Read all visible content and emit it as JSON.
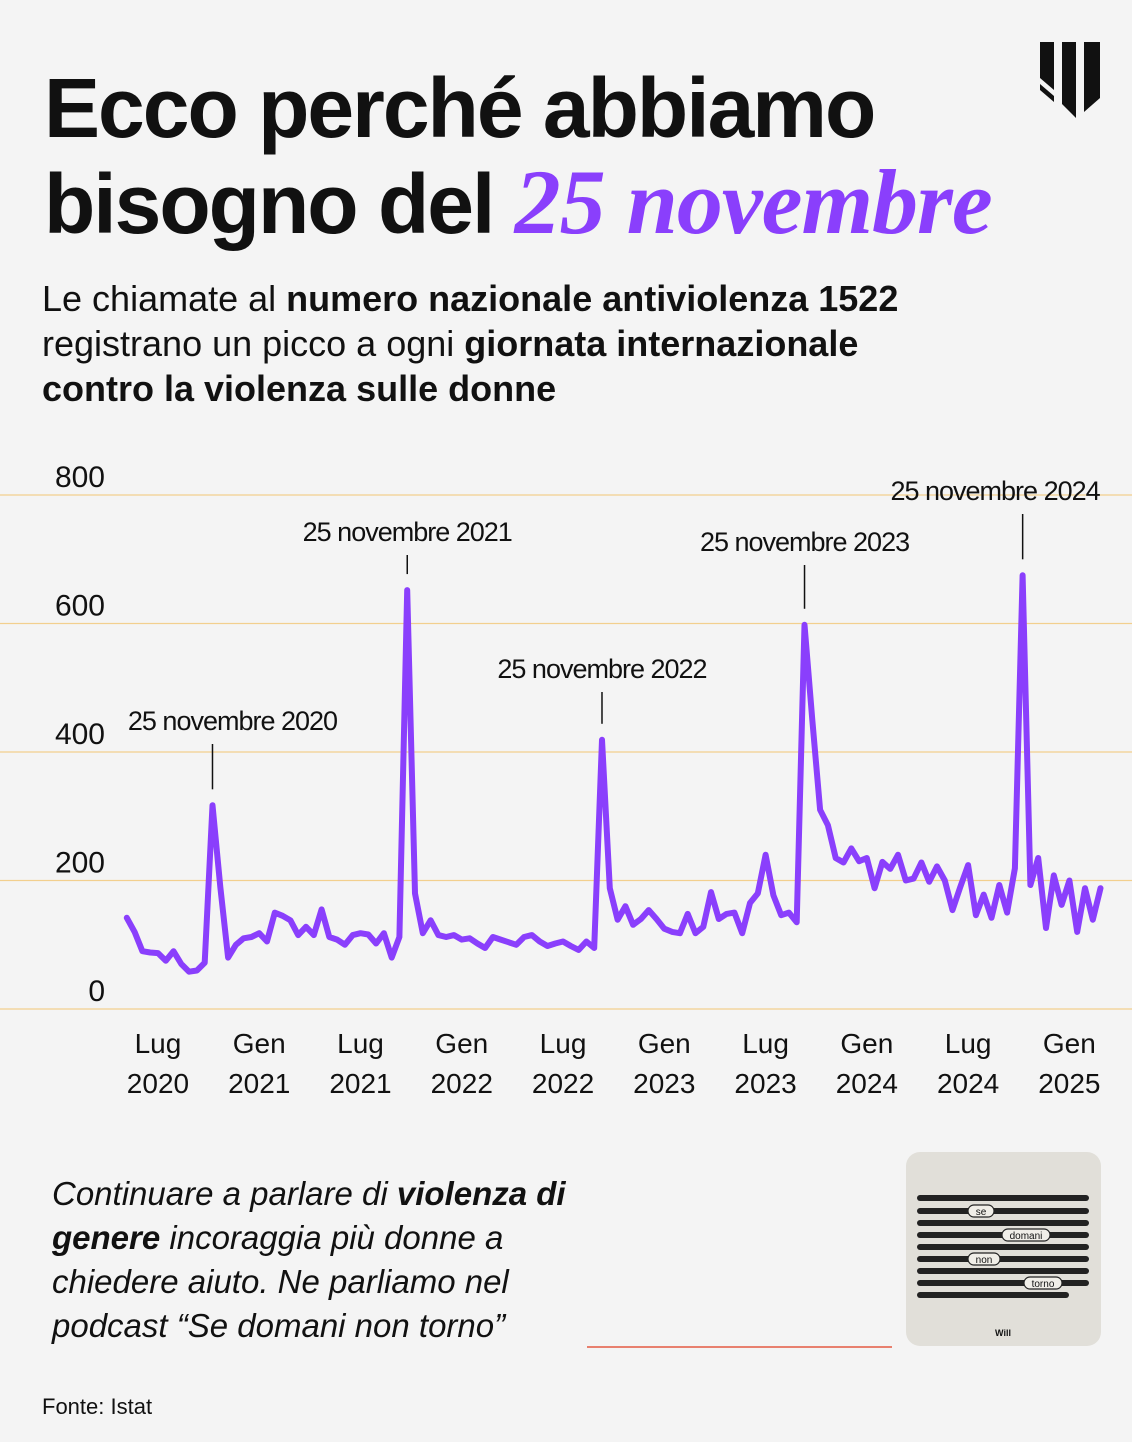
{
  "header": {
    "title_line1": "Ecco perché abbiamo",
    "title_line2": "bisogno del",
    "title_highlight": "25 novembre",
    "subtitle": [
      "Le chiamate al",
      "numero nazionale antiviolenza 1522",
      "registrano un picco a ogni",
      "giornata internazionale",
      "contro la violenza sulle donne"
    ]
  },
  "chart_data": {
    "type": "line",
    "categories": [
      null,
      null,
      null,
      null,
      null,
      null,
      null,
      null,
      null,
      null,
      null,
      null,
      null,
      null,
      null,
      null,
      null,
      null,
      null,
      null,
      null,
      null,
      null,
      null,
      null,
      null,
      null,
      null,
      null,
      null,
      null,
      null,
      null,
      null,
      null,
      null,
      null,
      null,
      null,
      null,
      null,
      null,
      null,
      null,
      null,
      null,
      null,
      null,
      null,
      null,
      null,
      null,
      null,
      null,
      null,
      null,
      null,
      null,
      null,
      null,
      null,
      null,
      null,
      null,
      null,
      null,
      null,
      null,
      null,
      null,
      null,
      null,
      null,
      null,
      null,
      null,
      null,
      null,
      null,
      null,
      null,
      null,
      null,
      null,
      null,
      null,
      null,
      null,
      null,
      null,
      null,
      null,
      null,
      null,
      null,
      null,
      null,
      null,
      null,
      null,
      null,
      null,
      null,
      null,
      null,
      null,
      null,
      null,
      null,
      null,
      null,
      null,
      null,
      null,
      null,
      null,
      null,
      null,
      null,
      null,
      null,
      null,
      null,
      null,
      null,
      null
    ],
    "values": [
      142,
      120,
      90,
      88,
      87,
      75,
      90,
      70,
      58,
      60,
      72,
      317,
      190,
      80,
      100,
      110,
      112,
      118,
      105,
      150,
      145,
      138,
      115,
      128,
      115,
      155,
      112,
      108,
      100,
      115,
      118,
      116,
      102,
      118,
      80,
      112,
      652,
      180,
      118,
      138,
      115,
      112,
      115,
      108,
      110,
      102,
      95,
      112,
      108,
      104,
      100,
      112,
      115,
      105,
      98,
      102,
      105,
      98,
      92,
      105,
      95,
      419,
      188,
      139,
      160,
      131,
      140,
      154,
      140,
      125,
      120,
      118,
      148,
      118,
      128,
      182,
      140,
      148,
      150,
      118,
      165,
      180,
      240,
      177,
      146,
      150,
      135,
      598,
      450,
      310,
      286,
      235,
      228,
      250,
      230,
      235,
      188,
      229,
      218,
      240,
      200,
      203,
      228,
      198,
      222,
      200,
      154,
      190,
      224,
      146,
      178,
      142,
      193,
      150,
      219,
      675,
      193,
      235,
      126,
      208,
      162,
      200,
      120,
      188,
      139,
      188
    ],
    "color": "#8a3ffc",
    "ylim": [
      0,
      800
    ],
    "yticks": [
      0,
      200,
      400,
      600,
      800
    ],
    "grid": true,
    "xticks": [
      {
        "value": 4,
        "label": "Lug 2020"
      },
      {
        "value": 17,
        "label": "Gen 2021"
      },
      {
        "value": 30,
        "label": "Lug 2021"
      },
      {
        "value": 43,
        "label": "Gen 2022"
      },
      {
        "value": 56,
        "label": "Lug 2022"
      },
      {
        "value": 69,
        "label": "Gen 2023"
      },
      {
        "value": 82,
        "label": "Lug 2023"
      },
      {
        "value": 95,
        "label": "Gen 2024"
      },
      {
        "value": 108,
        "label": "Lug 2024"
      },
      {
        "value": 121,
        "label": "Gen 2025"
      }
    ],
    "annotations": [
      "25 novembre 2020",
      "25 novembre 2021",
      "25 novembre 2022",
      "25 novembre 2023",
      "25 novembre 2024"
    ]
  },
  "footer": {
    "text": [
      "Continuare a parlare di",
      "violenza di genere",
      "incoraggia più donne a chiedere aiuto. Ne parliamo nel podcast “Se domani non torno”"
    ],
    "cover_words": [
      "se",
      "domani",
      "non",
      "torno"
    ],
    "cover_brand": "Will",
    "source": "Fonte: Istat"
  }
}
